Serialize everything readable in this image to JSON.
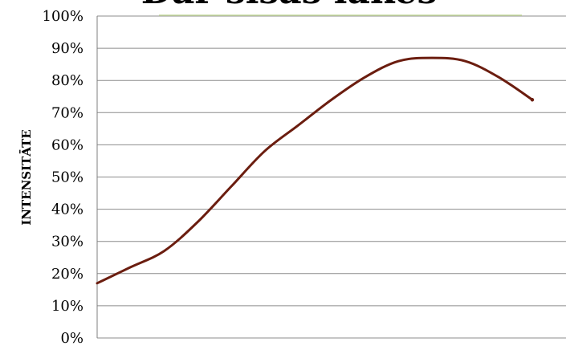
{
  "chart_data": {
    "type": "line",
    "title": "Dar sisas lakes",
    "ylabel": "INTENSITĀTE",
    "xlabel": "",
    "y_tick_labels": [
      "0%",
      "10%",
      "20%",
      "30%",
      "40%",
      "50%",
      "60%",
      "70%",
      "80%",
      "90%",
      "100%"
    ],
    "ylim": [
      0,
      100
    ],
    "y_unit": "%",
    "grid": true,
    "smooth": true,
    "series": [
      {
        "color": "#6b1d0f",
        "y": [
          17,
          22,
          27,
          36,
          47,
          58,
          66,
          74,
          81,
          86,
          87,
          86,
          81,
          74
        ]
      }
    ]
  }
}
